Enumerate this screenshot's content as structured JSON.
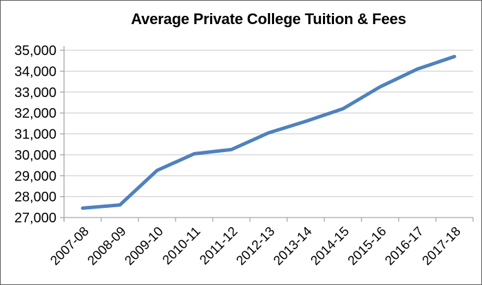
{
  "chart_data": {
    "type": "line",
    "title": "Average Private College Tuition & Fees",
    "categories": [
      "2007-08",
      "2008-09",
      "2009-10",
      "2010-11",
      "2011-12",
      "2012-13",
      "2013-14",
      "2014-15",
      "2015-16",
      "2016-17",
      "2017-18"
    ],
    "values": [
      27450,
      27600,
      29250,
      30050,
      30250,
      31050,
      31600,
      32200,
      33250,
      34100,
      34700
    ],
    "ylim": [
      27000,
      35000
    ],
    "ytick_step": 1000,
    "ytick_labels": [
      "27,000",
      "28,000",
      "29,000",
      "30,000",
      "31,000",
      "32,000",
      "33,000",
      "34,000",
      "35,000"
    ],
    "xlabel": "",
    "ylabel": "",
    "grid": true,
    "legend_position": "none",
    "colors": {
      "line": "#4F81BD",
      "gridline": "#C9C9C9",
      "axis": "#A6A6A6",
      "text": "#000000",
      "background": "#FFFFFF"
    }
  }
}
